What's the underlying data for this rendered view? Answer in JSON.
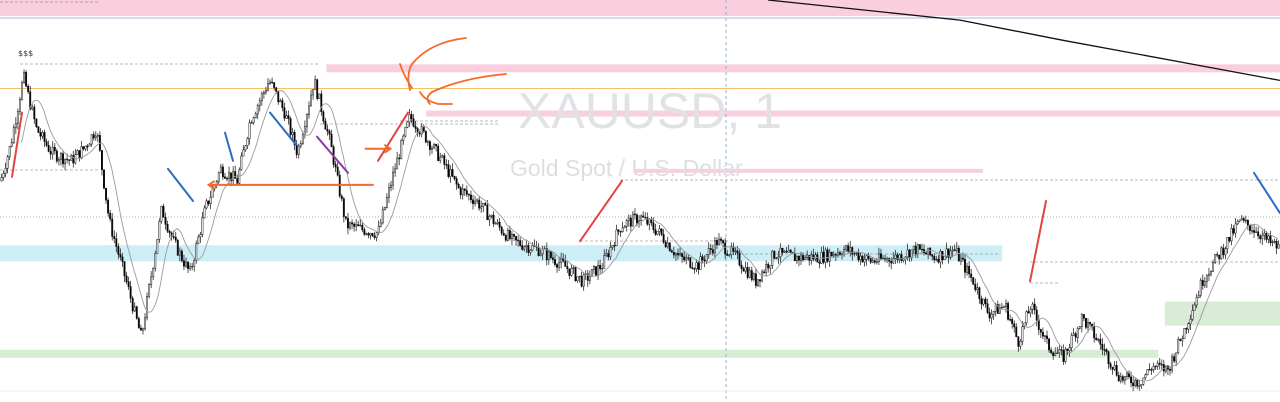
{
  "chart_data": {
    "type": "candlestick",
    "symbol_label": "XAUUSD, 1",
    "description_label": "Gold Spot / U.S. Dollar",
    "top_marker_label": "$$$",
    "grid": false,
    "x_range": [
      0,
      1000
    ],
    "y_range": [
      0,
      100
    ],
    "price_path": [
      [
        0,
        55
      ],
      [
        8,
        64
      ],
      [
        18,
        81
      ],
      [
        28,
        68
      ],
      [
        40,
        62
      ],
      [
        55,
        60
      ],
      [
        65,
        63
      ],
      [
        75,
        68
      ],
      [
        85,
        45
      ],
      [
        100,
        28
      ],
      [
        110,
        16
      ],
      [
        118,
        32
      ],
      [
        126,
        48
      ],
      [
        135,
        40
      ],
      [
        148,
        32
      ],
      [
        160,
        48
      ],
      [
        172,
        58
      ],
      [
        185,
        55
      ],
      [
        195,
        70
      ],
      [
        210,
        80
      ],
      [
        222,
        72
      ],
      [
        232,
        62
      ],
      [
        245,
        80
      ],
      [
        258,
        64
      ],
      [
        270,
        44
      ],
      [
        282,
        43
      ],
      [
        295,
        42
      ],
      [
        308,
        58
      ],
      [
        320,
        71
      ],
      [
        332,
        66
      ],
      [
        345,
        60
      ],
      [
        358,
        53
      ],
      [
        372,
        50
      ],
      [
        388,
        44
      ],
      [
        400,
        40
      ],
      [
        420,
        38
      ],
      [
        440,
        34
      ],
      [
        455,
        30
      ],
      [
        470,
        34
      ],
      [
        485,
        44
      ],
      [
        500,
        46
      ],
      [
        515,
        42
      ],
      [
        530,
        36
      ],
      [
        545,
        34
      ],
      [
        560,
        40
      ],
      [
        575,
        36
      ],
      [
        590,
        30
      ],
      [
        605,
        37
      ],
      [
        620,
        36
      ],
      [
        640,
        36
      ],
      [
        660,
        38
      ],
      [
        680,
        35
      ],
      [
        700,
        36
      ],
      [
        715,
        38
      ],
      [
        730,
        36
      ],
      [
        745,
        38
      ],
      [
        760,
        30
      ],
      [
        772,
        22
      ],
      [
        785,
        24
      ],
      [
        795,
        15
      ],
      [
        805,
        24
      ],
      [
        818,
        14
      ],
      [
        830,
        11
      ],
      [
        845,
        21
      ],
      [
        860,
        14
      ],
      [
        875,
        6
      ],
      [
        890,
        5
      ],
      [
        900,
        9
      ],
      [
        912,
        8
      ],
      [
        925,
        18
      ],
      [
        940,
        31
      ],
      [
        955,
        38
      ],
      [
        968,
        45
      ],
      [
        980,
        43
      ],
      [
        990,
        40
      ],
      [
        1000,
        38
      ]
    ],
    "moving_average_long": [
      [
        600,
        100
      ],
      [
        750,
        95
      ],
      [
        830,
        90
      ],
      [
        1000,
        80
      ]
    ],
    "zones": [
      {
        "kind": "supply",
        "y_from": 96,
        "y_to": 100,
        "x_from": 0,
        "x_to": 1000
      },
      {
        "kind": "supply",
        "y_from": 82,
        "y_to": 84,
        "x_from": 255,
        "x_to": 1000
      },
      {
        "kind": "supply",
        "y_from": 71,
        "y_to": 72.5,
        "x_from": 333,
        "x_to": 1000
      },
      {
        "kind": "supply",
        "y_from": 57,
        "y_to": 58,
        "x_from": 495,
        "x_to": 768
      },
      {
        "kind": "demand",
        "y_from": 35,
        "y_to": 39,
        "x_from": 0,
        "x_to": 783
      },
      {
        "kind": "demand",
        "y_from": 19,
        "y_to": 25,
        "x_from": 910,
        "x_to": 1000
      },
      {
        "kind": "demand",
        "y_from": 11,
        "y_to": 13,
        "x_from": 0,
        "x_to": 905
      }
    ],
    "horizontal_level": 78,
    "annotations": [
      {
        "kind": "arrow",
        "color": "#f26a2c",
        "from": [
          292,
          54
        ],
        "to": [
          163,
          54
        ]
      },
      {
        "kind": "arrow",
        "color": "#f26a2c",
        "from": [
          285,
          63
        ],
        "to": [
          305,
          63
        ]
      }
    ],
    "colors": {
      "up_candle": "#000000",
      "down_candle": "#000000",
      "supply_zone": "#f9cfdd",
      "demand_zone_blue": "#cdeef6",
      "demand_zone_green": "#d8ecd6",
      "swing_red": "#e0453f",
      "swing_blue": "#2d6bc4",
      "swing_purple": "#8e3aa8",
      "annotation_orange": "#f26a2c",
      "level_line": "#f5c06a"
    }
  }
}
